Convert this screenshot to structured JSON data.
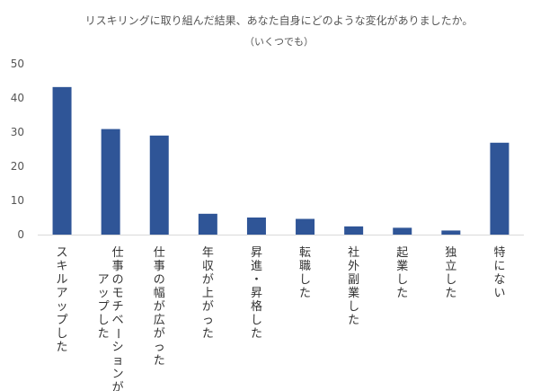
{
  "chart_data": {
    "type": "bar",
    "title": "リスキリングに取り組んだ結果、あなた自身にどのような変化がありましたか。",
    "subtitle": "（いくつでも）",
    "categories": [
      [
        "スキルアップした"
      ],
      [
        "仕事のモチベーションが",
        "アップした"
      ],
      [
        "仕事の幅が広がった"
      ],
      [
        "年収が上がった"
      ],
      [
        "昇進・昇格した"
      ],
      [
        "転職した"
      ],
      [
        "社外副業した"
      ],
      [
        "起業した"
      ],
      [
        "独立した"
      ],
      [
        "特にない"
      ]
    ],
    "values": [
      43.2,
      30.9,
      29.0,
      6.1,
      5.0,
      4.6,
      2.4,
      2.0,
      1.2,
      26.9
    ],
    "yticks": [
      0,
      10,
      20,
      30,
      40,
      50
    ],
    "ylim": [
      0,
      50
    ],
    "xlabel": "",
    "ylabel": "",
    "grid": false,
    "colors": {
      "bar": "#2f5597",
      "axis": "#d9d9d9"
    }
  }
}
